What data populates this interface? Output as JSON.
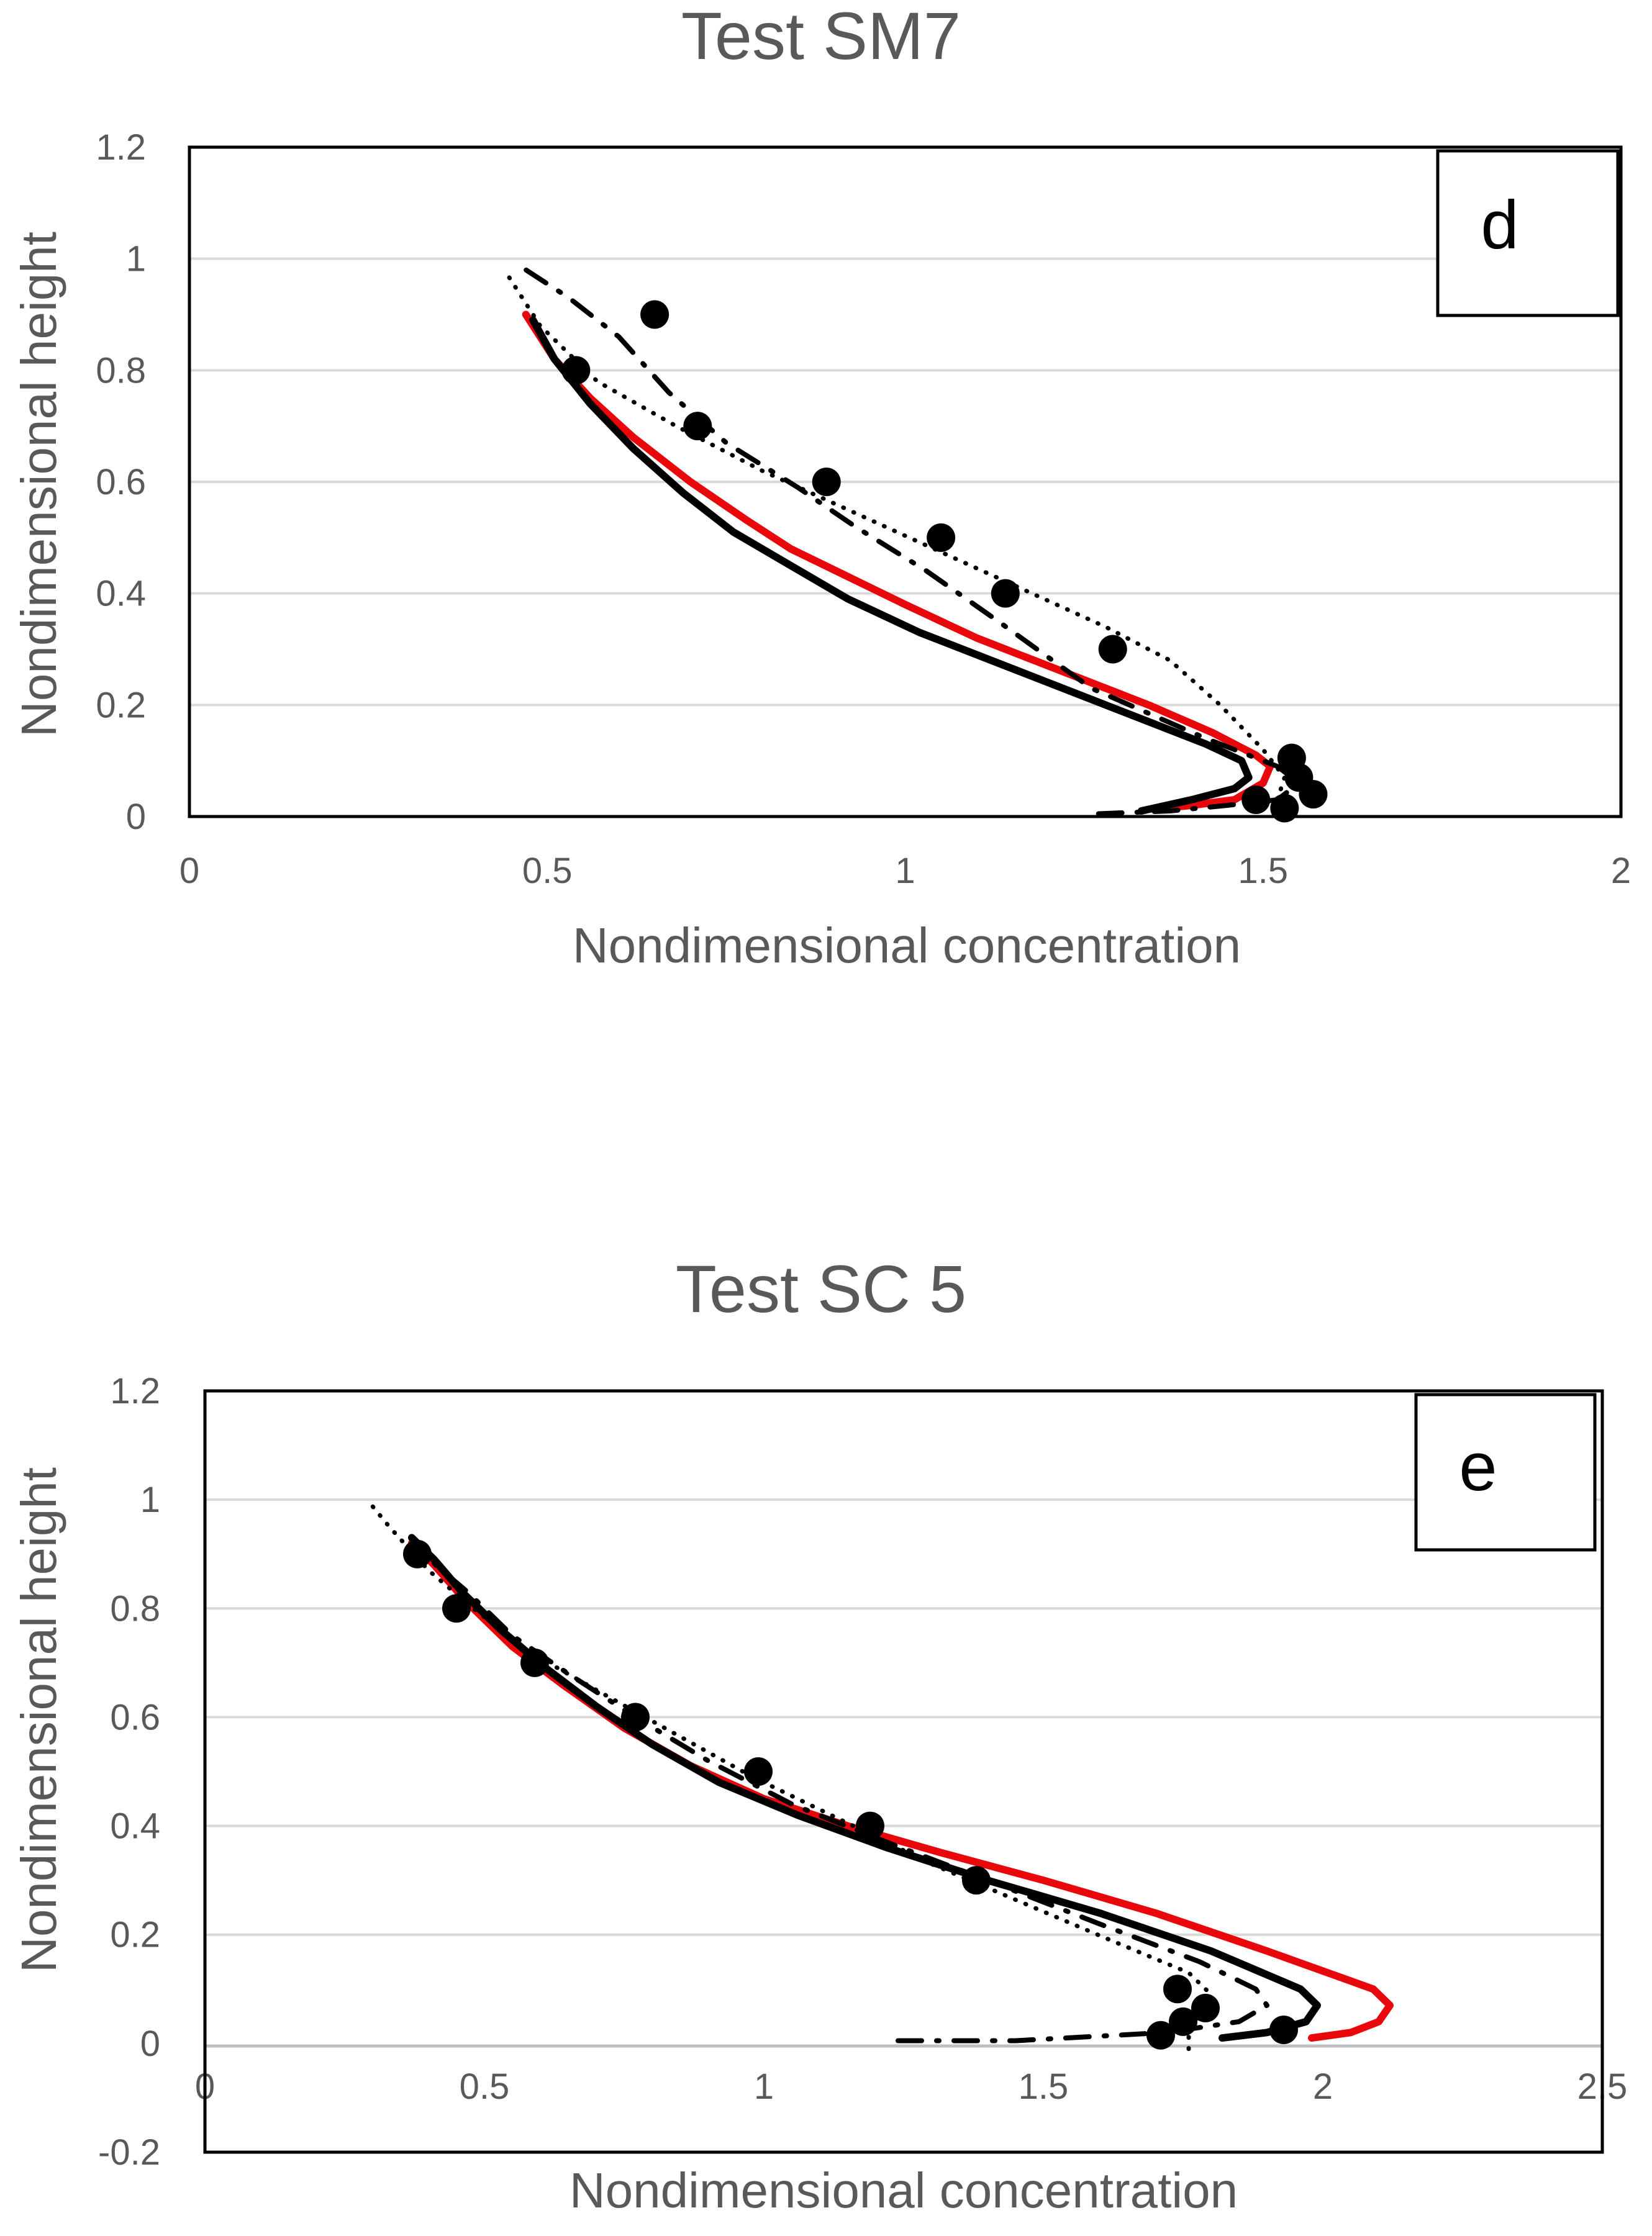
{
  "chart_data": [
    {
      "type": "line",
      "title": "Test SM7",
      "xlabel": "Nondimensional concentration",
      "ylabel": "Nondimensional height",
      "xlim": [
        0,
        2
      ],
      "ylim": [
        0,
        1.2
      ],
      "x_ticks": [
        "0",
        "0.5",
        "1",
        "1.5",
        "2"
      ],
      "y_ticks": [
        "0",
        "0.2",
        "0.4",
        "0.6",
        "0.8",
        "1",
        "1.2"
      ],
      "panel_label": "d",
      "grid": true,
      "legend": "none",
      "series": [
        {
          "name": "solid-red",
          "color": "#e8070b",
          "style": "solid",
          "x": [
            1.36,
            1.4,
            1.46,
            1.5,
            1.51,
            1.49,
            1.43,
            1.34,
            1.22,
            1.1,
            1.0,
            0.92,
            0.84,
            0.78,
            0.7,
            0.62,
            0.56,
            0.51,
            0.47
          ],
          "y": [
            0.015,
            0.02,
            0.03,
            0.06,
            0.09,
            0.11,
            0.15,
            0.2,
            0.26,
            0.32,
            0.38,
            0.43,
            0.48,
            0.53,
            0.6,
            0.68,
            0.75,
            0.82,
            0.9
          ]
        },
        {
          "name": "solid-black",
          "color": "#000000",
          "style": "solid",
          "x": [
            1.33,
            1.4,
            1.46,
            1.48,
            1.47,
            1.42,
            1.3,
            1.16,
            1.02,
            0.92,
            0.84,
            0.76,
            0.69,
            0.62,
            0.56,
            0.51,
            0.48
          ],
          "y": [
            0.01,
            0.03,
            0.05,
            0.07,
            0.1,
            0.13,
            0.19,
            0.26,
            0.33,
            0.39,
            0.45,
            0.51,
            0.58,
            0.66,
            0.74,
            0.82,
            0.89
          ]
        },
        {
          "name": "dashed-black",
          "color": "#000000",
          "style": "dashdot",
          "x": [
            1.27,
            1.37,
            1.45,
            1.52,
            1.55,
            1.52,
            1.42,
            1.26,
            1.13,
            1.03,
            0.93,
            0.85,
            0.75,
            0.67,
            0.6,
            0.53,
            0.47
          ],
          "y": [
            0.005,
            0.01,
            0.02,
            0.03,
            0.06,
            0.09,
            0.14,
            0.23,
            0.35,
            0.44,
            0.52,
            0.59,
            0.67,
            0.76,
            0.86,
            0.93,
            0.98
          ]
        },
        {
          "name": "dotted-black",
          "color": "#000000",
          "style": "dotted",
          "x": [
            1.52,
            1.53,
            1.5,
            1.44,
            1.37,
            1.28,
            1.16,
            1.04,
            0.92,
            0.8,
            0.68,
            0.57,
            0.49,
            0.44
          ],
          "y": [
            0.03,
            0.07,
            0.12,
            0.2,
            0.28,
            0.34,
            0.41,
            0.48,
            0.55,
            0.62,
            0.7,
            0.78,
            0.88,
            0.98
          ]
        },
        {
          "name": "measured",
          "color": "#000000",
          "style": "markers",
          "x": [
            0.65,
            0.54,
            0.71,
            0.89,
            1.05,
            1.14,
            1.29,
            1.54,
            1.55,
            1.57,
            1.49,
            1.53
          ],
          "y": [
            0.9,
            0.8,
            0.7,
            0.6,
            0.5,
            0.4,
            0.3,
            0.105,
            0.07,
            0.04,
            0.03,
            0.015
          ]
        }
      ]
    },
    {
      "type": "line",
      "title": "Test SC 5",
      "xlabel": "Nondimensional concentration",
      "ylabel": "Nondimensional height",
      "xlim": [
        0,
        2.5
      ],
      "ylim": [
        -0.2,
        1.2
      ],
      "x_ticks": [
        "0",
        "0.5",
        "1",
        "1.5",
        "2",
        "2.5"
      ],
      "y_ticks": [
        "-0.2",
        "0",
        "0.2",
        "0.4",
        "0.6",
        "0.8",
        "1",
        "1.2"
      ],
      "panel_label": "e",
      "grid": true,
      "legend": "none",
      "series": [
        {
          "name": "solid-red",
          "color": "#e8070b",
          "style": "solid",
          "x": [
            1.98,
            2.05,
            2.1,
            2.12,
            2.09,
            1.9,
            1.7,
            1.5,
            1.32,
            1.15,
            1.0,
            0.87,
            0.75,
            0.64,
            0.55,
            0.47,
            0.41,
            0.37
          ],
          "y": [
            0.01,
            0.02,
            0.04,
            0.07,
            0.1,
            0.17,
            0.24,
            0.3,
            0.35,
            0.4,
            0.45,
            0.51,
            0.58,
            0.66,
            0.73,
            0.81,
            0.88,
            0.92
          ]
        },
        {
          "name": "solid-black",
          "color": "#000000",
          "style": "solid",
          "x": [
            1.82,
            1.9,
            1.97,
            1.99,
            1.96,
            1.8,
            1.6,
            1.4,
            1.22,
            1.06,
            0.92,
            0.8,
            0.7,
            0.61,
            0.53,
            0.46,
            0.41,
            0.37
          ],
          "y": [
            0.01,
            0.02,
            0.04,
            0.07,
            0.1,
            0.17,
            0.24,
            0.3,
            0.36,
            0.42,
            0.48,
            0.55,
            0.62,
            0.69,
            0.76,
            0.83,
            0.89,
            0.93
          ]
        },
        {
          "name": "dashed-black",
          "color": "#000000",
          "style": "dashdot",
          "x": [
            1.24,
            1.45,
            1.72,
            1.85,
            1.9,
            1.88,
            1.78,
            1.6,
            1.4,
            1.22,
            1.05,
            0.9,
            0.77,
            0.65,
            0.55,
            0.47,
            0.39
          ],
          "y": [
            0.005,
            0.005,
            0.02,
            0.04,
            0.07,
            0.1,
            0.15,
            0.22,
            0.3,
            0.37,
            0.44,
            0.52,
            0.6,
            0.68,
            0.75,
            0.83,
            0.9
          ]
        },
        {
          "name": "dotted-black",
          "color": "#000000",
          "style": "dotted",
          "x": [
            1.76,
            1.76,
            1.78,
            1.8,
            1.76,
            1.62,
            1.46,
            1.3,
            1.14,
            0.98,
            0.84,
            0.7,
            0.58,
            0.48,
            0.4,
            0.33,
            0.29
          ],
          "y": [
            -0.01,
            0.02,
            0.05,
            0.09,
            0.13,
            0.19,
            0.26,
            0.33,
            0.41,
            0.49,
            0.57,
            0.65,
            0.72,
            0.8,
            0.87,
            0.95,
            1.0
          ]
        },
        {
          "name": "measured",
          "color": "#000000",
          "style": "markers",
          "x": [
            0.38,
            0.45,
            0.59,
            0.77,
            0.99,
            1.19,
            1.38,
            1.74,
            1.79,
            1.75,
            1.93,
            1.71
          ],
          "y": [
            0.9,
            0.8,
            0.7,
            0.6,
            0.5,
            0.4,
            0.3,
            0.1,
            0.065,
            0.04,
            0.025,
            0.015
          ]
        }
      ]
    }
  ]
}
